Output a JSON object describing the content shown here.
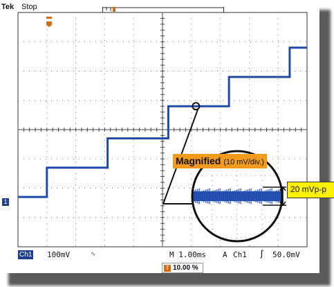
{
  "header": {
    "brand": "Tek",
    "state": "Stop"
  },
  "status_bar": {
    "channel_badge": "Ch1",
    "channel_scale": "100mV",
    "bandwidth_icon": "bandwidth-limit-icon",
    "timebase": "M 1.00ms",
    "trigger_mode": "A",
    "trigger_source": "Ch1",
    "trigger_edge_icon": "rising-edge-icon",
    "trigger_level": "50.0mV",
    "horizontal_position": "10.00 %"
  },
  "markers": {
    "ch1_marker": "1",
    "trigger_marker_icon": "trigger-position-icon"
  },
  "callout": {
    "title": "Magnified",
    "scale": "(10 mV/div.)",
    "measurement": "20 mVp-p"
  },
  "colors": {
    "trace": "#1f4aa8",
    "channel_badge": "#1f3f8c",
    "callout_label_bg": "#f29a1b",
    "measurement_bg": "#fff200",
    "trigger_marker": "#d46a14"
  },
  "waveform": {
    "description_units": "divisions",
    "steps": [
      {
        "t_div": 0.0,
        "level_div": -2.3
      },
      {
        "t_div": 1.0,
        "level_div": -1.3
      },
      {
        "t_div": 3.1,
        "level_div": -0.3
      },
      {
        "t_div": 5.2,
        "level_div": 0.8
      },
      {
        "t_div": 7.3,
        "level_div": 1.8
      },
      {
        "t_div": 9.4,
        "level_div": 2.8
      }
    ]
  }
}
